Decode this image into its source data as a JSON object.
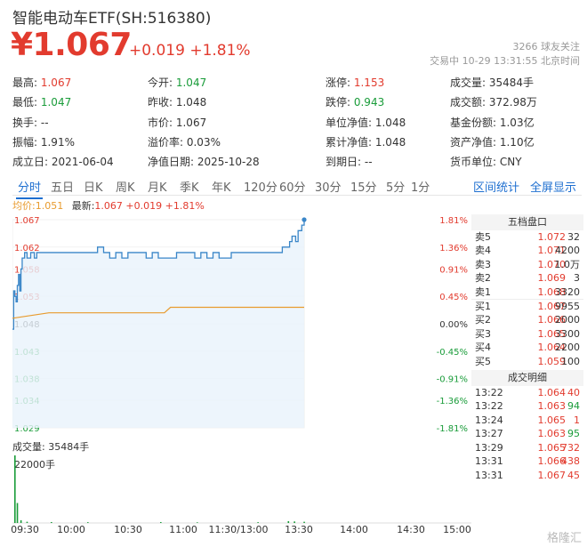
{
  "header": {
    "title": "智能电动车ETF(SH:516380)",
    "price": "¥1.067",
    "change": "+0.019",
    "change_pct": "+1.81%",
    "followers": "3266 球友关注",
    "trade_status": "交易中 10-29 13:31:55 北京时间"
  },
  "stats": [
    {
      "key": "最高:",
      "value": "1.067",
      "color": "up"
    },
    {
      "key": "今开:",
      "value": "1.047",
      "color": "down"
    },
    {
      "key": "涨停:",
      "value": "1.153",
      "color": "up"
    },
    {
      "key": "成交量:",
      "value": "35484手",
      "color": ""
    },
    {
      "key": "最低:",
      "value": "1.047",
      "color": "down"
    },
    {
      "key": "昨收:",
      "value": "1.048",
      "color": ""
    },
    {
      "key": "跌停:",
      "value": "0.943",
      "color": "down"
    },
    {
      "key": "成交额:",
      "value": "372.98万",
      "color": ""
    },
    {
      "key": "换手:",
      "value": "--",
      "color": ""
    },
    {
      "key": "市价:",
      "value": "1.067",
      "color": ""
    },
    {
      "key": "单位净值:",
      "value": "1.048",
      "color": ""
    },
    {
      "key": "基金份额:",
      "value": "1.03亿",
      "color": ""
    },
    {
      "key": "振幅:",
      "value": "1.91%",
      "color": ""
    },
    {
      "key": "溢价率:",
      "value": "0.03%",
      "color": ""
    },
    {
      "key": "累计净值:",
      "value": "1.048",
      "color": ""
    },
    {
      "key": "资产净值:",
      "value": "1.10亿",
      "color": ""
    },
    {
      "key": "成立日:",
      "value": "2021-06-04",
      "color": ""
    },
    {
      "key": "净值日期:",
      "value": "2025-10-28",
      "color": ""
    },
    {
      "key": "到期日:",
      "value": "--",
      "color": ""
    },
    {
      "key": "货币单位:",
      "value": "CNY",
      "color": ""
    }
  ],
  "tabs": [
    "分时",
    "五日",
    "日K",
    "周K",
    "月K",
    "季K",
    "年K",
    "120分",
    "60分",
    "30分",
    "15分",
    "5分",
    "1分"
  ],
  "active_tab": "分时",
  "right_tabs": [
    "区间统计",
    "全屏显示"
  ],
  "legend": {
    "avg_label": "均价:1.051",
    "latest_label": "最新:",
    "latest_value": "1.067 +0.019 +1.81%"
  },
  "volume": {
    "label": "成交量: 35484手",
    "max_label": "22000手"
  },
  "orderbook": {
    "title": "五档盘口",
    "asks": [
      {
        "label": "卖5",
        "price": "1.072",
        "vol": "32"
      },
      {
        "label": "卖4",
        "price": "1.071",
        "vol": "4200"
      },
      {
        "label": "卖3",
        "price": "1.070",
        "vol": "1.0万"
      },
      {
        "label": "卖2",
        "price": "1.069",
        "vol": "3"
      },
      {
        "label": "卖1",
        "price": "1.068",
        "vol": "3320"
      }
    ],
    "bids": [
      {
        "label": "买1",
        "price": "1.067",
        "vol": "9955"
      },
      {
        "label": "买2",
        "price": "1.066",
        "vol": "2000"
      },
      {
        "label": "买3",
        "price": "1.065",
        "vol": "3300"
      },
      {
        "label": "买4",
        "price": "1.064",
        "vol": "2200"
      },
      {
        "label": "买5",
        "price": "1.059",
        "vol": "100"
      }
    ]
  },
  "trades": {
    "title": "成交明细",
    "rows": [
      {
        "time": "13:22",
        "price": "1.064",
        "vol": "40",
        "dir": "up"
      },
      {
        "time": "13:22",
        "price": "1.063",
        "vol": "94",
        "dir": "down"
      },
      {
        "time": "13:24",
        "price": "1.065",
        "vol": "1",
        "dir": "up"
      },
      {
        "time": "13:27",
        "price": "1.063",
        "vol": "95",
        "dir": "down"
      },
      {
        "time": "13:29",
        "price": "1.065",
        "vol": "732",
        "dir": "up"
      },
      {
        "time": "13:31",
        "price": "1.066",
        "vol": "438",
        "dir": "up"
      },
      {
        "time": "13:31",
        "price": "1.067",
        "vol": "45",
        "dir": "up"
      }
    ]
  },
  "colors": {
    "up": "#e23b2e",
    "down": "#1a9c3a",
    "price_line": "#3a86c8",
    "avg_line": "#e89b2e",
    "accent": "#1e6fd0"
  },
  "watermark": "格隆汇",
  "chart_data": {
    "type": "line",
    "y_left_ticks": [
      "1.067",
      "1.062",
      "1.058",
      "1.053",
      "1.048",
      "1.043",
      "1.038",
      "1.034",
      "1.029"
    ],
    "y_right_ticks": [
      "1.81%",
      "1.36%",
      "0.91%",
      "0.45%",
      "0.00%",
      "-0.45%",
      "-0.91%",
      "-1.36%",
      "-1.81%"
    ],
    "ylim": [
      1.029,
      1.067
    ],
    "prev_close": 1.048,
    "x_ticks": [
      "09:30",
      "10:00",
      "10:30",
      "11:00",
      "11:30/13:00",
      "13:30",
      "14:00",
      "14:30",
      "15:00"
    ],
    "total_minutes": 240,
    "series": [
      {
        "x": [
          0,
          1,
          2,
          3,
          4,
          5,
          6,
          7,
          8,
          10,
          12,
          15,
          18,
          20,
          25,
          30,
          35,
          40,
          45,
          50,
          55,
          60,
          65,
          70,
          75,
          80,
          85,
          90,
          95,
          100,
          105,
          110,
          115,
          118,
          120,
          125,
          130,
          135,
          140,
          145,
          150,
          155,
          160,
          165,
          170,
          175,
          180,
          185,
          190,
          200,
          210,
          215,
          220,
          222,
          225,
          228,
          230,
          233,
          235,
          238,
          240
        ],
        "values": [
          1.047,
          1.054,
          1.053,
          1.052,
          1.055,
          1.057,
          1.054,
          1.058,
          1.06,
          1.061,
          1.06,
          1.061,
          1.06,
          1.061,
          1.061,
          1.061,
          1.061,
          1.061,
          1.061,
          1.061,
          1.061,
          1.061,
          1.061,
          1.062,
          1.061,
          1.06,
          1.061,
          1.06,
          1.061,
          1.061,
          1.061,
          1.06,
          1.061,
          1.061,
          1.06,
          1.06,
          1.06,
          1.061,
          1.061,
          1.061,
          1.06,
          1.061,
          1.06,
          1.061,
          1.06,
          1.06,
          1.061,
          1.061,
          1.061,
          1.061,
          1.061,
          1.061,
          1.061,
          1.062,
          1.062,
          1.063,
          1.064,
          1.063,
          1.065,
          1.066,
          1.067
        ]
      },
      {
        "x": [
          0,
          30,
          35,
          40,
          120,
          125,
          130,
          240
        ],
        "values": [
          1.049,
          1.05,
          1.05,
          1.05,
          1.05,
          1.05,
          1.051,
          1.051
        ]
      }
    ],
    "volume": {
      "ylim": [
        0,
        22000
      ],
      "bars": [
        {
          "x": 0,
          "value": 22000
        },
        {
          "x": 2,
          "value": 6500
        },
        {
          "x": 5,
          "value": 900
        },
        {
          "x": 10,
          "value": 400
        },
        {
          "x": 30,
          "value": 300
        },
        {
          "x": 60,
          "value": 250
        },
        {
          "x": 120,
          "value": 300
        },
        {
          "x": 150,
          "value": 200
        },
        {
          "x": 200,
          "value": 250
        },
        {
          "x": 225,
          "value": 600
        },
        {
          "x": 230,
          "value": 500
        },
        {
          "x": 238,
          "value": 400
        }
      ]
    }
  }
}
